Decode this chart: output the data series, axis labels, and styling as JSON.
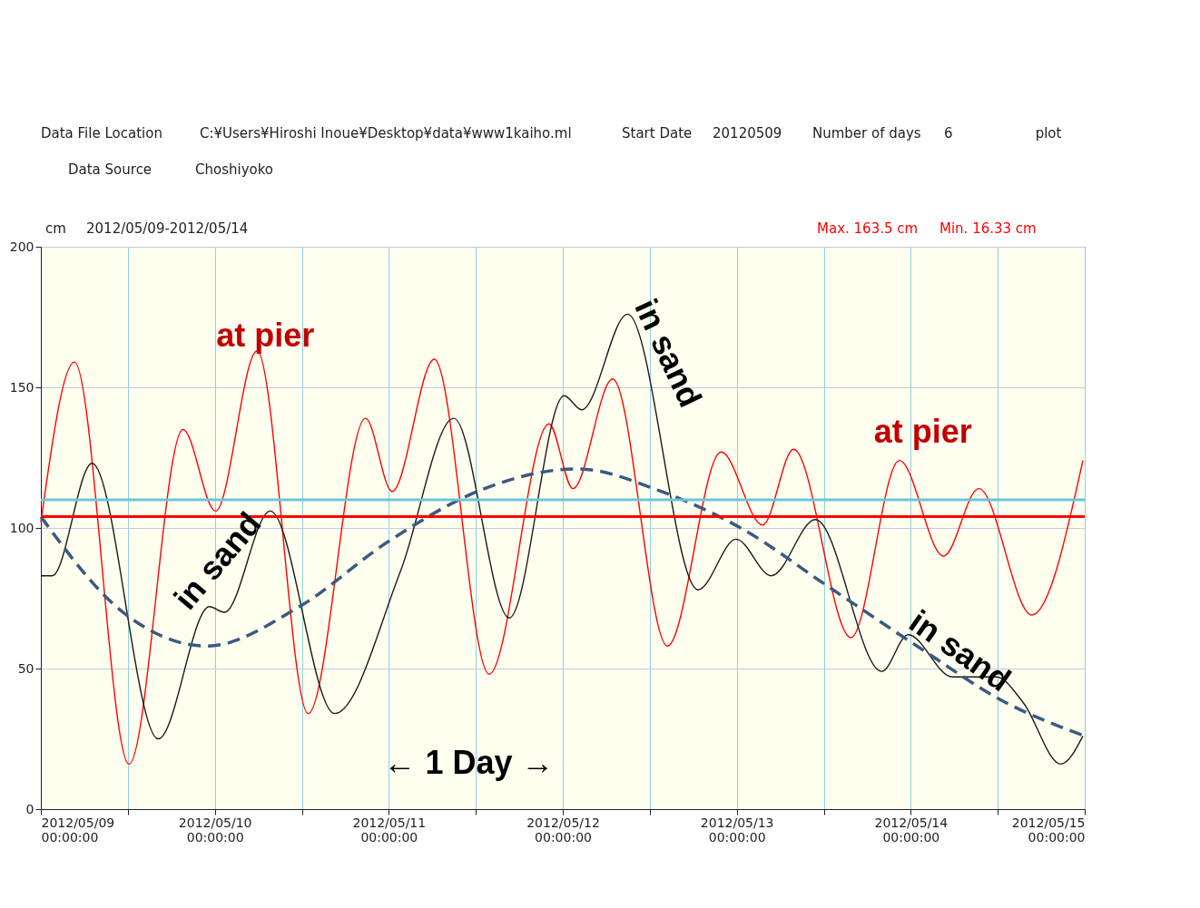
{
  "chart_data": {
    "type": "line",
    "annotations": [
      "Data File Location",
      "C:¥Users¥Hiroshi Inoue¥Desktop¥data¥www1kaiho.ml",
      "Start Date",
      "20120509",
      "Number of days",
      "6",
      "plot",
      "Data Source",
      "Choshiyoko",
      "cm",
      "2012/05/09-2012/05/14",
      "Max. 163.5 cm",
      "Min. 16.33 cm",
      "at pier",
      "at pier",
      "in sand",
      "in sand",
      "in sand",
      "← 1 Day →"
    ],
    "series": [
      {
        "color": "#ff0000",
        "x": [
          "2012-05-09T00:00",
          "2012-05-09T04:38",
          "2012-05-09T12:10",
          "2012-05-09T19:36",
          "2012-05-10T00:06",
          "2012-05-10T05:50",
          "2012-05-10T12:53",
          "2012-05-10T20:47",
          "2012-05-11T00:27",
          "2012-05-11T06:17",
          "2012-05-11T13:50",
          "2012-05-11T22:06",
          "2012-05-12T01:24",
          "2012-05-12T06:53",
          "2012-05-12T14:26",
          "2012-05-12T21:50",
          "2012-05-13T03:34",
          "2012-05-13T07:50",
          "2012-05-13T15:45",
          "2012-05-13T22:26",
          "2012-05-14T04:31",
          "2012-05-14T09:23",
          "2012-05-14T16:42",
          "2012-05-14T23:45"
        ],
        "values": [
          102,
          159,
          16,
          135,
          106,
          163,
          34,
          139,
          113,
          160,
          48,
          137,
          114,
          153,
          58,
          127,
          101,
          128,
          61,
          124,
          90,
          114,
          69,
          124
        ]
      },
      {
        "color": "#1a1a1a",
        "x": [
          "2012-05-09T00:00",
          "2012-05-09T01:35",
          "2012-05-09T07:04",
          "2012-05-09T16:12",
          "2012-05-09T23:15",
          "2012-05-10T01:19",
          "2012-05-10T07:39",
          "2012-05-10T16:32",
          "2012-05-11T01:40",
          "2012-05-11T08:58",
          "2012-05-11T16:38",
          "2012-05-12T00:11",
          "2012-05-12T02:37",
          "2012-05-12T08:57",
          "2012-05-12T18:40",
          "2012-05-12T23:55",
          "2012-05-13T04:46",
          "2012-05-13T10:52",
          "2012-05-13T20:00",
          "2012-05-13T23:38",
          "2012-05-14T05:44",
          "2012-05-14T11:50",
          "2012-05-14T15:29",
          "2012-05-14T20:43",
          "2012-05-14T23:45"
        ],
        "values": [
          83,
          83,
          123,
          25,
          72,
          70,
          106,
          34,
          85,
          139,
          68,
          147,
          142,
          176,
          78,
          96,
          83,
          103,
          49,
          62,
          47,
          47,
          38,
          16,
          26
        ]
      },
      {
        "color": "#3b5a80",
        "line_style": "dashed",
        "x": [
          "2012-05-09T00:00",
          "2012-05-09T11:20",
          "2012-05-09T22:53",
          "2012-05-10T11:40",
          "2012-05-10T23:50",
          "2012-05-11T13:13",
          "2012-05-12T02:01",
          "2012-05-12T13:34",
          "2012-05-13T00:32",
          "2012-05-13T12:42",
          "2012-05-14T00:52",
          "2012-05-14T13:02",
          "2012-05-15T00:00"
        ],
        "values": [
          104,
          70,
          58,
          72,
          95,
          114,
          121,
          113,
          100,
          79,
          58,
          38,
          26
        ]
      }
    ],
    "ref_lines": [
      {
        "axis": "y",
        "value": 110,
        "color": "#6cc5d9"
      },
      {
        "axis": "y",
        "value": 104,
        "color": "#ff0000"
      }
    ],
    "xlim": [
      "2012-05-09",
      "2012-05-15"
    ],
    "xticks": [
      {
        "value": "2012-05-09",
        "label": "2012/05/09 00:00:00"
      },
      {
        "value": "2012-05-09T12:00",
        "label": null
      },
      {
        "value": "2012-05-10",
        "label": "2012/05/10 00:00:00"
      },
      {
        "value": "2012-05-10T12:00",
        "label": null
      },
      {
        "value": "2012-05-11",
        "label": "2012/05/11 00:00:00"
      },
      {
        "value": "2012-05-11T12:00",
        "label": null
      },
      {
        "value": "2012-05-12",
        "label": "2012/05/12 00:00:00"
      },
      {
        "value": "2012-05-12T12:00",
        "label": null
      },
      {
        "value": "2012-05-13",
        "label": "2012/05/13 00:00:00"
      },
      {
        "value": "2012-05-13T12:00",
        "label": null
      },
      {
        "value": "2012-05-14",
        "label": "2012/05/14 00:00:00"
      },
      {
        "value": "2012-05-14T12:00",
        "label": null
      },
      {
        "value": "2012-05-15",
        "label": "2012/05/15 00:00:00"
      }
    ],
    "ylim": [
      0,
      200
    ],
    "yticks": [
      0,
      50,
      100,
      150,
      200
    ],
    "grid": true,
    "marker": "none",
    "line_style": "solid"
  }
}
